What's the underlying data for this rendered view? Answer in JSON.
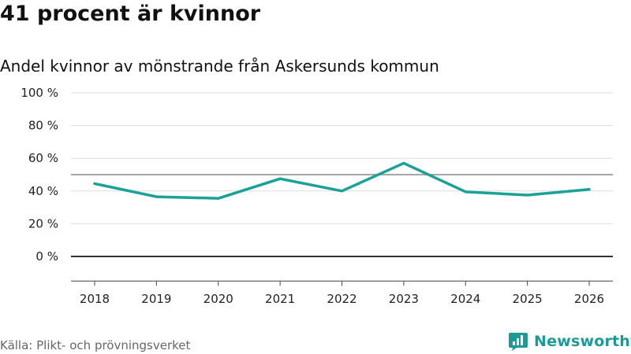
{
  "header": {
    "title": "41 procent är kvinnor"
  },
  "footer": {
    "source": "Källa: Plikt- och prövningsverket",
    "brand_name": "Newsworthy",
    "brand_icon": "newsworthy-logo-icon"
  },
  "colors": {
    "line": "#1aa198",
    "reference_line": "#888888",
    "zero_line": "#333333",
    "grid": "#dddddd",
    "brand": "#1a9b98"
  },
  "chart_data": {
    "type": "line",
    "title": "41 procent är kvinnor",
    "subtitle": "Andel kvinnor av mönstrande från Askersunds kommun",
    "xlabel": "",
    "ylabel": "",
    "categories": [
      "2018",
      "2019",
      "2020",
      "2021",
      "2022",
      "2023",
      "2024",
      "2025",
      "2026"
    ],
    "series": [
      {
        "name": "Andel kvinnor",
        "values": [
          44.5,
          36.5,
          35.5,
          47.5,
          40,
          57,
          39.5,
          37.5,
          41
        ]
      }
    ],
    "reference_line": 50,
    "ylim": [
      -15,
      100
    ],
    "y_ticks": [
      0,
      20,
      40,
      60,
      80,
      100
    ],
    "y_tick_labels": [
      "0 %",
      "20 %",
      "40 %",
      "60 %",
      "80 %",
      "100 %"
    ],
    "grid": true,
    "legend": "none"
  }
}
